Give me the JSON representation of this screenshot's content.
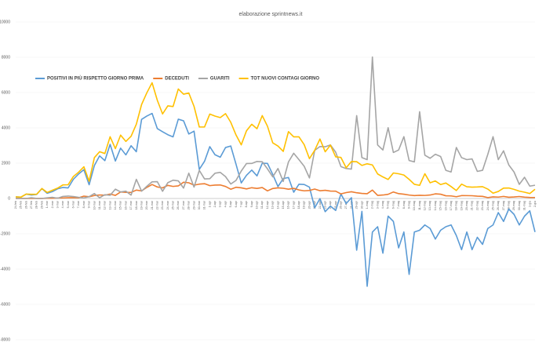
{
  "chart_data": {
    "type": "line",
    "title": "elaborazione sprintnews.it",
    "categories": [
      "24-feb",
      "25-feb",
      "26-feb",
      "27-feb",
      "28-feb",
      "29-feb",
      "1-mar",
      "2-mar",
      "3-mar",
      "4-mar",
      "5-mar",
      "6-mar",
      "7-mar",
      "8-mar",
      "9-mar",
      "10-mar",
      "11-mar",
      "12-mar",
      "13-mar",
      "14-mar",
      "15-mar",
      "16-mar",
      "17-mar",
      "18-mar",
      "19-mar",
      "20-mar",
      "21-mar",
      "22-mar",
      "23-mar",
      "24-mar",
      "25-mar",
      "26-mar",
      "27-mar",
      "28-mar",
      "29-mar",
      "30-mar",
      "31-mar",
      "1-apr",
      "2-apr",
      "3-apr",
      "4-apr",
      "5-apr",
      "6-apr",
      "7-apr",
      "8-apr",
      "9-apr",
      "10-apr",
      "11-apr",
      "12-apr",
      "13-apr",
      "14-apr",
      "15-apr",
      "16-apr",
      "17-apr",
      "18-apr",
      "19-apr",
      "20-apr",
      "21-apr",
      "22-apr",
      "23-apr",
      "24-apr",
      "25-apr",
      "26-apr",
      "27-apr",
      "28-apr",
      "29-apr",
      "30-apr",
      "1-mag",
      "2-mag",
      "3-mag",
      "4-mag",
      "5-mag",
      "6-mag",
      "7-mag",
      "8-mag",
      "9-mag",
      "10-mag",
      "11-mag",
      "12-mag",
      "13-mag",
      "14-mag",
      "15-mag",
      "16-mag",
      "17-mag",
      "18-mag",
      "19-mag",
      "20-mag",
      "21-mag",
      "22-mag",
      "23-mag",
      "24-mag",
      "25-mag",
      "26-mag",
      "27-mag",
      "28-mag",
      "29-mag",
      "30-mag",
      "31-mag",
      "1-giu",
      "2-giu"
    ],
    "series": [
      {
        "name": "POSITIVI IN PIÙ RISPETTO GIORNO PRIMA",
        "color": "#5b9bd5",
        "values": [
          91,
          73,
          247,
          194,
          231,
          562,
          293,
          389,
          549,
          625,
          599,
          1089,
          1390,
          1631,
          778,
          1865,
          2414,
          2145,
          3066,
          2121,
          2853,
          2470,
          2989,
          2648,
          4480,
          4670,
          4821,
          3957,
          3780,
          3612,
          3491,
          4492,
          4401,
          3651,
          3815,
          1648,
          2107,
          2937,
          2477,
          2339,
          2886,
          2972,
          1941,
          880,
          1315,
          1609,
          1282,
          1996,
          1984,
          1363,
          675,
          1127,
          1189,
          355,
          809,
          792,
          640,
          -528,
          -10,
          -748,
          -432,
          -680,
          256,
          -290,
          44,
          -2930,
          -730,
          -4974,
          -1904,
          -1600,
          -3100,
          -1000,
          -1300,
          -2800,
          -1900,
          -4300,
          -1900,
          -1800,
          -1500,
          -1700,
          -2300,
          -1800,
          -1600,
          -1500,
          -2100,
          -2900,
          -1900,
          -2900,
          -2200,
          -2600,
          -1700,
          -1500,
          -800,
          -1300,
          -600,
          -900,
          -1500,
          -1000,
          -700,
          -1900
        ]
      },
      {
        "name": "DECEDUTI",
        "color": "#ed7d31",
        "values": [
          2,
          4,
          3,
          2,
          5,
          4,
          12,
          11,
          27,
          28,
          41,
          49,
          36,
          133,
          97,
          168,
          196,
          189,
          250,
          175,
          368,
          349,
          345,
          475,
          427,
          627,
          793,
          651,
          601,
          743,
          683,
          712,
          919,
          889,
          756,
          812,
          837,
          727,
          760,
          766,
          681,
          525,
          636,
          604,
          542,
          610,
          570,
          619,
          431,
          566,
          602,
          578,
          525,
          575,
          482,
          433,
          454,
          534,
          437,
          464,
          420,
          415,
          260,
          333,
          382,
          323,
          285,
          269,
          474,
          174,
          195,
          236,
          369,
          274,
          243,
          194,
          165,
          179,
          172,
          195,
          262,
          242,
          153,
          145,
          99,
          162,
          161,
          156,
          130,
          119,
          50,
          92,
          78,
          117,
          70,
          87,
          111,
          75,
          60,
          55
        ]
      },
      {
        "name": "GUARITI",
        "color": "#a5a5a5",
        "values": [
          0,
          1,
          0,
          42,
          4,
          0,
          37,
          66,
          11,
          116,
          138,
          109,
          66,
          33,
          102,
          280,
          41,
          213,
          181,
          527,
          369,
          414,
          192,
          1084,
          415,
          689,
          943,
          952,
          408,
          894,
          1036,
          999,
          589,
          1434,
          646,
          1590,
          1109,
          1118,
          1431,
          1480,
          1238,
          819,
          1022,
          1555,
          1979,
          1985,
          2099,
          2079,
          1677,
          1224,
          1695,
          962,
          2072,
          2563,
          2200,
          1822,
          1162,
          2723,
          2943,
          2930,
          3033,
          2622,
          1808,
          1696,
          1665,
          4693,
          2317,
          2200,
          8014,
          3031,
          2747,
          4008,
          2606,
          2747,
          3502,
          2150,
          2075,
          4917,
          2452,
          2278,
          2504,
          2380,
          1595,
          1502,
          2887,
          2314,
          2200,
          2240,
          1534,
          1597,
          2500,
          3500,
          2200,
          2700,
          1900,
          1500,
          800,
          1200,
          700,
          750
        ]
      },
      {
        "name": "TOT NUOVI CONTAGI GIORNO",
        "color": "#ffc000",
        "values": [
          93,
          78,
          250,
          238,
          240,
          566,
          342,
          466,
          587,
          769,
          778,
          1247,
          1492,
          1797,
          977,
          2313,
          2651,
          2547,
          3497,
          2823,
          3590,
          3233,
          3526,
          4207,
          5322,
          5986,
          6557,
          5560,
          4789,
          5249,
          5210,
          6203,
          5909,
          5974,
          5217,
          4050,
          4053,
          4782,
          4668,
          4585,
          4805,
          4316,
          3599,
          3039,
          3836,
          4204,
          3951,
          4694,
          4092,
          3153,
          2972,
          2667,
          3786,
          3493,
          3491,
          3047,
          2256,
          2729,
          3370,
          2646,
          3021,
          2357,
          2324,
          1739,
          2091,
          2086,
          1872,
          1965,
          1900,
          1389,
          1221,
          1075,
          1444,
          1401,
          1327,
          1083,
          802,
          744,
          1402,
          888,
          992,
          789,
          875,
          675,
          451,
          813,
          665,
          642,
          652,
          669,
          531,
          300,
          397,
          584,
          593,
          516,
          416,
          355,
          280,
          520
        ]
      }
    ],
    "ylim": [
      -8000,
      10000
    ],
    "yticks": [
      -8000,
      -6000,
      -4000,
      -2000,
      0,
      2000,
      4000,
      6000,
      8000,
      10000
    ],
    "grid": true,
    "legend": "top-left"
  }
}
